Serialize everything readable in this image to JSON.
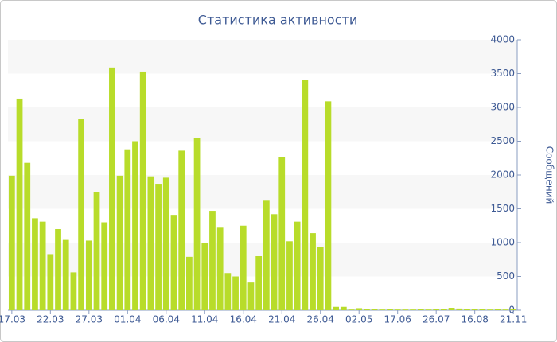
{
  "chart_data": {
    "type": "bar",
    "title": "Статистика активности",
    "y_axis_label": "Сообщений",
    "categories": [
      "17.03",
      null,
      null,
      null,
      null,
      "22.03",
      null,
      null,
      null,
      null,
      "27.03",
      null,
      null,
      null,
      null,
      "01.04",
      null,
      null,
      null,
      null,
      "06.04",
      null,
      null,
      null,
      null,
      "11.04",
      null,
      null,
      null,
      null,
      "16.04",
      null,
      null,
      null,
      null,
      "21.04",
      null,
      null,
      null,
      null,
      "26.04",
      null,
      null,
      null,
      null,
      "02.05",
      null,
      null,
      null,
      null,
      "17.06",
      null,
      null,
      null,
      null,
      "26.07",
      null,
      null,
      null,
      null,
      "16.08",
      null,
      null,
      null,
      null,
      "21.11"
    ],
    "values": [
      1990,
      3130,
      2180,
      1360,
      1310,
      830,
      1200,
      1040,
      560,
      2830,
      1030,
      1750,
      1300,
      3590,
      1990,
      2380,
      2500,
      3530,
      1980,
      1870,
      1960,
      1410,
      2360,
      790,
      2550,
      990,
      1470,
      1220,
      550,
      500,
      1250,
      410,
      800,
      1620,
      1420,
      2270,
      1020,
      1310,
      3400,
      1140,
      930,
      3090,
      50,
      50,
      10,
      30,
      20,
      15,
      10,
      15,
      10,
      10,
      10,
      15,
      10,
      15,
      15,
      35,
      25,
      15,
      15,
      15,
      10,
      15,
      10,
      15
    ],
    "color": "#b8dc2a",
    "ylim": [
      0,
      4000
    ],
    "yticks": [
      0,
      500,
      1000,
      1500,
      2000,
      2500,
      3000,
      3500,
      4000
    ],
    "y_axis_side": "right",
    "grid": "bands"
  }
}
